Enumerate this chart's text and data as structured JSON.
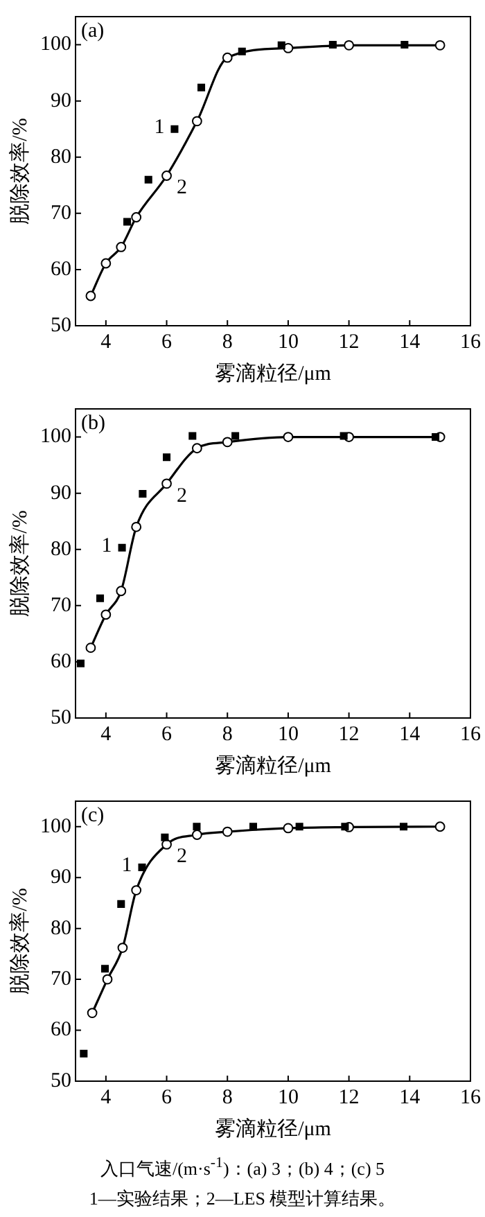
{
  "chart_data": [
    {
      "type": "line",
      "title": "(a)",
      "xlabel": "雾滴粒径/μm",
      "ylabel": "脱除效率/%",
      "xlim": [
        3,
        16
      ],
      "xticks": [
        4,
        6,
        8,
        10,
        12,
        14,
        16
      ],
      "ylim": [
        50,
        105
      ],
      "yticks": [
        50,
        60,
        70,
        80,
        90,
        100
      ],
      "grid": false,
      "legend": false,
      "series": [
        {
          "name": "1",
          "type": "scatter",
          "marker": "square",
          "color": "#000000",
          "x": [
            4.7,
            5.4,
            6.26,
            7.14,
            8.48,
            9.78,
            11.47,
            13.83
          ],
          "values": [
            68.5,
            76.0,
            85.0,
            92.4,
            98.8,
            99.9,
            100,
            100
          ]
        },
        {
          "name": "2",
          "type": "line",
          "marker": "circle",
          "color": "#000000",
          "x": [
            3.5,
            4,
            4.5,
            5,
            6,
            7,
            8,
            10,
            12,
            15
          ],
          "values": [
            55.3,
            61.1,
            64.0,
            69.3,
            76.7,
            86.4,
            97.7,
            99.4,
            99.9,
            99.9
          ]
        }
      ]
    },
    {
      "type": "line",
      "title": "(b)",
      "xlabel": "雾滴粒径/μm",
      "ylabel": "脱除效率/%",
      "xlim": [
        3,
        16
      ],
      "xticks": [
        4,
        6,
        8,
        10,
        12,
        14,
        16
      ],
      "ylim": [
        50,
        105
      ],
      "yticks": [
        50,
        60,
        70,
        80,
        90,
        100
      ],
      "grid": false,
      "legend": false,
      "series": [
        {
          "name": "1",
          "type": "scatter",
          "marker": "square",
          "color": "#000000",
          "x": [
            3.17,
            3.81,
            4.53,
            5.21,
            6.0,
            6.85,
            8.26,
            11.83,
            14.85
          ],
          "values": [
            59.7,
            71.3,
            80.3,
            89.9,
            96.4,
            100.2,
            100.2,
            100.2,
            100
          ]
        },
        {
          "name": "2",
          "type": "line",
          "marker": "circle",
          "color": "#000000",
          "x": [
            3.5,
            4,
            4.5,
            5,
            6,
            7,
            8,
            10,
            12,
            15
          ],
          "values": [
            62.5,
            68.4,
            72.6,
            84.0,
            91.7,
            98.0,
            99.1,
            100,
            100,
            100
          ]
        }
      ]
    },
    {
      "type": "line",
      "title": "(c)",
      "xlabel": "雾滴粒径/μm",
      "ylabel": "脱除效率/%",
      "xlim": [
        3,
        16
      ],
      "xticks": [
        4,
        6,
        8,
        10,
        12,
        14,
        16
      ],
      "ylim": [
        50,
        105
      ],
      "yticks": [
        50,
        60,
        70,
        80,
        90,
        100
      ],
      "grid": false,
      "legend": false,
      "series": [
        {
          "name": "1",
          "type": "scatter",
          "marker": "square",
          "color": "#000000",
          "x": [
            3.27,
            3.97,
            4.5,
            5.19,
            5.94,
            6.99,
            8.85,
            10.37,
            11.87,
            13.8
          ],
          "values": [
            55.4,
            72.1,
            84.8,
            92.0,
            97.9,
            100,
            100,
            100,
            100,
            100
          ]
        },
        {
          "name": "2",
          "type": "line",
          "marker": "circle",
          "color": "#000000",
          "x": [
            3.55,
            4.05,
            4.55,
            5,
            6,
            7,
            8,
            10,
            12,
            15
          ],
          "values": [
            63.4,
            70.0,
            76.2,
            87.5,
            96.5,
            98.4,
            99.0,
            99.7,
            99.9,
            100
          ]
        }
      ],
      "annotations": [
        "入口气速/(m·s$^{-1}$)：(a) 3；(b) 4；(c) 5",
        "1—实验结果；2—LES 模型计算结果。"
      ]
    }
  ]
}
